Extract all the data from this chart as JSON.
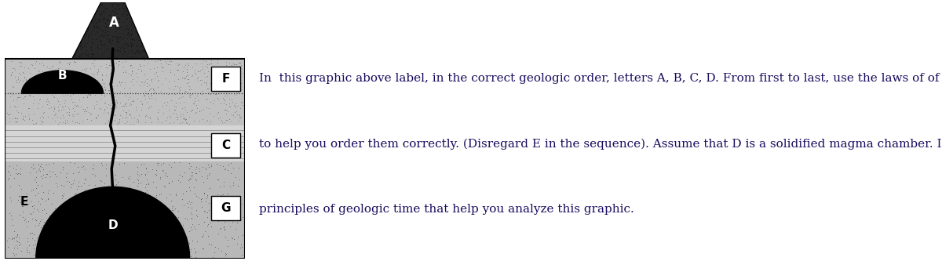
{
  "fig_width": 12.0,
  "fig_height": 3.33,
  "dpi": 100,
  "bg_color": "#ffffff",
  "label_color_white": "#ffffff",
  "label_color_black": "#000000",
  "label_fontsize": 10,
  "label_fontweight": "bold",
  "caption_line1": "In  this graphic above label, in the correct geologic order, letters A, B, C, D. From first to last, use the laws of of relative geologic time",
  "caption_line2": "to help you order them correctly. (Disregard E in the sequence). Assume that D is a solidified magma chamber. Include the",
  "caption_line3": "principles of geologic time that help you analyze this graphic.",
  "caption_fontsize": 11.0,
  "caption_color": "#1a0a5e"
}
